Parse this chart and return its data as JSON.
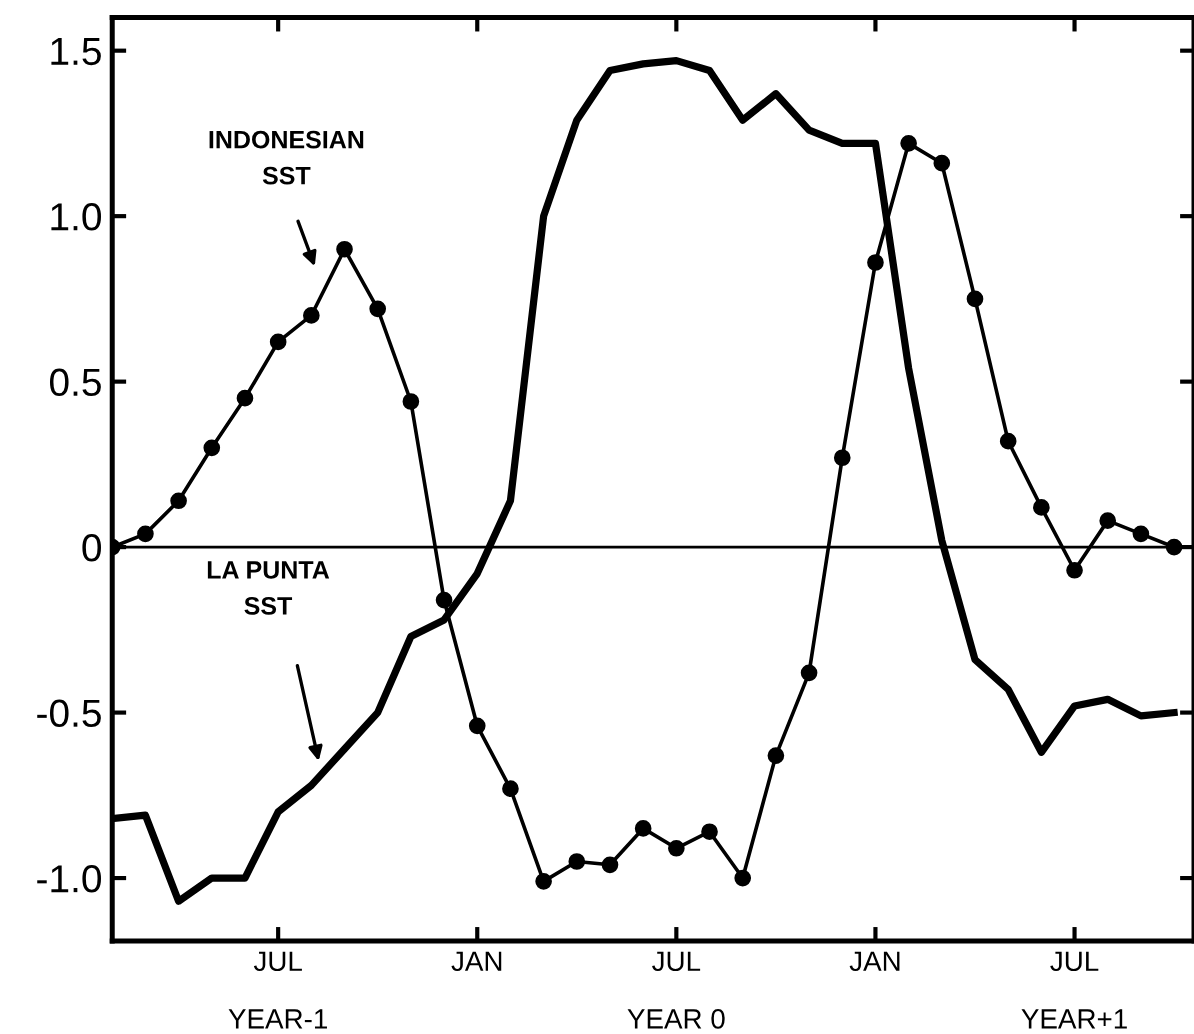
{
  "chart_data": {
    "type": "line",
    "categories": [
      null,
      null,
      null,
      null,
      null,
      "JUL",
      null,
      null,
      null,
      null,
      null,
      "JAN",
      null,
      null,
      null,
      null,
      null,
      "JUL",
      null,
      null,
      null,
      null,
      null,
      "JAN",
      null,
      null,
      null,
      null,
      null,
      "JUL",
      null,
      null,
      null
    ],
    "ylim": [
      -1.19,
      1.6
    ],
    "yticks": [
      {
        "value": 1.5,
        "label": "1.5"
      },
      {
        "value": 1.0,
        "label": "1.0"
      },
      {
        "value": 0.5,
        "label": "0.5"
      },
      {
        "value": 0,
        "label": "0"
      },
      {
        "value": -0.5,
        "label": "-0.5"
      },
      {
        "value": -1.0,
        "label": "-1.0"
      }
    ],
    "grid": false,
    "ref_lines": [
      {
        "axis": "y",
        "value": 0,
        "color": "#000000",
        "line_style": "solid"
      }
    ],
    "annotations": [
      "INDONESIAN\nSST",
      "LA PUNTA\nSST",
      "YEAR-1",
      "YEAR 0",
      "YEAR+1"
    ],
    "series": [
      {
        "color": "#000000",
        "marker": "circle",
        "line_style": "solid",
        "values": [
          0,
          0.04,
          0.14,
          0.3,
          0.45,
          0.62,
          0.7,
          0.9,
          0.72,
          0.44,
          -0.16,
          -0.54,
          -0.73,
          -1.01,
          -0.95,
          -0.96,
          -0.85,
          -0.91,
          -0.86,
          -1.0,
          -0.63,
          -0.38,
          0.27,
          0.86,
          1.22,
          1.16,
          0.75,
          0.32,
          0.12,
          -0.07,
          0.08,
          0.04,
          0.0
        ]
      },
      {
        "color": "#000000",
        "marker": "none",
        "line_style": "solid",
        "values": [
          -0.82,
          -0.81,
          -1.07,
          -1.0,
          -1.0,
          -0.8,
          -0.72,
          -0.61,
          -0.5,
          -0.27,
          -0.22,
          -0.08,
          0.14,
          1.0,
          1.29,
          1.44,
          1.46,
          1.47,
          1.44,
          1.29,
          1.37,
          1.26,
          1.22,
          1.22,
          0.54,
          0.02,
          -0.34,
          -0.43,
          -0.62,
          -0.48,
          -0.46,
          -0.51,
          -0.5
        ]
      }
    ]
  }
}
